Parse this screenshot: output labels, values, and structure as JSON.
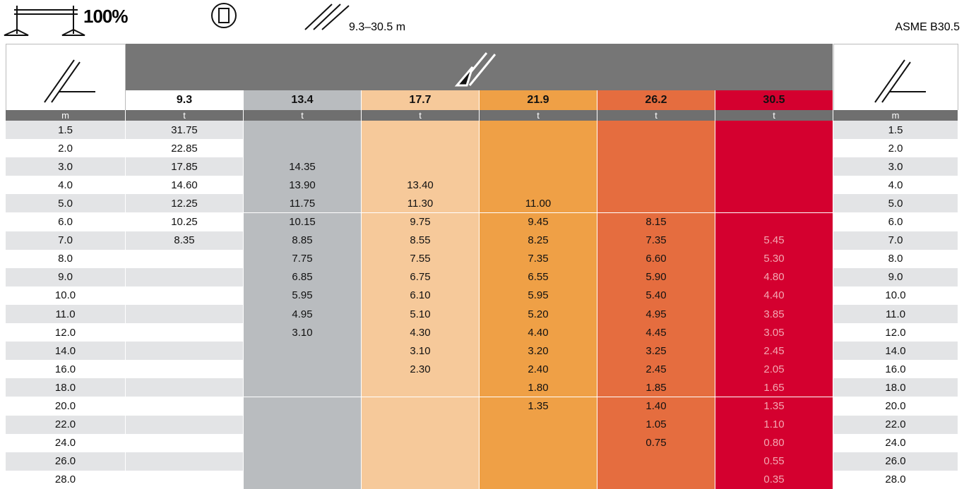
{
  "header": {
    "load": "100%",
    "boom_range": "9.3–30.5 m",
    "standard": "ASME B30.5"
  },
  "table": {
    "boom_lengths": [
      "9.3",
      "13.4",
      "17.7",
      "21.9",
      "26.2",
      "30.5"
    ],
    "radius_unit": "m",
    "load_unit": "t",
    "rows": [
      {
        "radius": "1.5",
        "loads": [
          "31.75",
          null,
          null,
          null,
          null,
          null
        ]
      },
      {
        "radius": "2.0",
        "loads": [
          "22.85",
          null,
          null,
          null,
          null,
          null
        ]
      },
      {
        "radius": "3.0",
        "loads": [
          "17.85",
          "14.35",
          null,
          null,
          null,
          null
        ]
      },
      {
        "radius": "4.0",
        "loads": [
          "14.60",
          "13.90",
          "13.40",
          null,
          null,
          null
        ]
      },
      {
        "radius": "5.0",
        "loads": [
          "12.25",
          "11.75",
          "11.30",
          "11.00",
          null,
          null
        ]
      },
      {
        "radius": "6.0",
        "loads": [
          "10.25",
          "10.15",
          "9.75",
          "9.45",
          "8.15",
          null
        ]
      },
      {
        "radius": "7.0",
        "loads": [
          "8.35",
          "8.85",
          "8.55",
          "8.25",
          "7.35",
          "5.45"
        ]
      },
      {
        "radius": "8.0",
        "loads": [
          null,
          "7.75",
          "7.55",
          "7.35",
          "6.60",
          "5.30"
        ]
      },
      {
        "radius": "9.0",
        "loads": [
          null,
          "6.85",
          "6.75",
          "6.55",
          "5.90",
          "4.80"
        ]
      },
      {
        "radius": "10.0",
        "loads": [
          null,
          "5.95",
          "6.10",
          "5.95",
          "5.40",
          "4.40"
        ]
      },
      {
        "radius": "11.0",
        "loads": [
          null,
          "4.95",
          "5.10",
          "5.20",
          "4.95",
          "3.85"
        ]
      },
      {
        "radius": "12.0",
        "loads": [
          null,
          "3.10",
          "4.30",
          "4.40",
          "4.45",
          "3.05"
        ]
      },
      {
        "radius": "14.0",
        "loads": [
          null,
          null,
          "3.10",
          "3.20",
          "3.25",
          "2.45"
        ]
      },
      {
        "radius": "16.0",
        "loads": [
          null,
          null,
          "2.30",
          "2.40",
          "2.45",
          "2.05"
        ]
      },
      {
        "radius": "18.0",
        "loads": [
          null,
          null,
          null,
          "1.80",
          "1.85",
          "1.65"
        ]
      },
      {
        "radius": "20.0",
        "loads": [
          null,
          null,
          null,
          "1.35",
          "1.40",
          "1.35"
        ]
      },
      {
        "radius": "22.0",
        "loads": [
          null,
          null,
          null,
          null,
          "1.05",
          "1.10"
        ]
      },
      {
        "radius": "24.0",
        "loads": [
          null,
          null,
          null,
          null,
          "0.75",
          "0.80"
        ]
      },
      {
        "radius": "26.0",
        "loads": [
          null,
          null,
          null,
          null,
          null,
          "0.55"
        ]
      },
      {
        "radius": "28.0",
        "loads": [
          null,
          null,
          null,
          null,
          null,
          "0.35"
        ]
      }
    ]
  }
}
